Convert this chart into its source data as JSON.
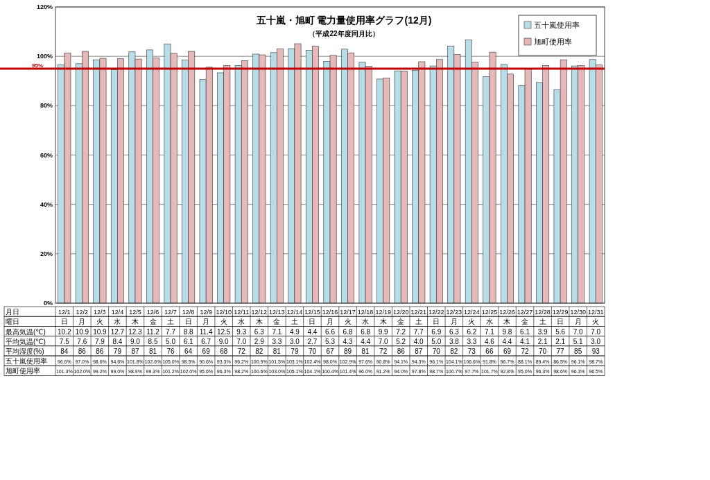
{
  "chart_data": {
    "type": "bar",
    "title": "五十嵐・旭町  電力量使用率グラフ(12月)",
    "subtitle": "（平成22年度同月比）",
    "xlabel": "月日",
    "categories": [
      "12/1",
      "12/2",
      "12/3",
      "12/4",
      "12/5",
      "12/6",
      "12/7",
      "12/8",
      "12/9",
      "12/10",
      "12/11",
      "12/12",
      "12/13",
      "12/14",
      "12/15",
      "12/16",
      "12/17",
      "12/18",
      "12/19",
      "12/20",
      "12/21",
      "12/22",
      "12/23",
      "12/24",
      "12/25",
      "12/26",
      "12/27",
      "12/28",
      "12/29",
      "12/30",
      "12/31"
    ],
    "series": [
      {
        "name": "五十嵐使用率",
        "color": "#b7dde8",
        "values": [
          96.6,
          97.0,
          98.6,
          94.6,
          101.8,
          102.6,
          105.0,
          98.5,
          90.6,
          93.3,
          96.2,
          100.9,
          101.5,
          103.1,
          102.4,
          98.0,
          102.9,
          97.6,
          90.8,
          94.1,
          94.3,
          96.1,
          104.1,
          106.6,
          91.8,
          96.7,
          88.1,
          89.4,
          86.5,
          96.1,
          98.7
        ],
        "value_labels": [
          "96.6%",
          "97.0%",
          "98.6%",
          "94.6%",
          "101.8%",
          "102.6%",
          "105.0%",
          "98.5%",
          "90.6%",
          "93.3%",
          "96.2%",
          "100.9%",
          "101.5%",
          "103.1%",
          "102.4%",
          "98.0%",
          "102.9%",
          "97.6%",
          "90.8%",
          "94.1%",
          "94.3%",
          "96.1%",
          "104.1%",
          "106.6%",
          "91.8%",
          "96.7%",
          "88.1%",
          "89.4%",
          "86.5%",
          "96.1%",
          "98.7%"
        ]
      },
      {
        "name": "旭町使用率",
        "color": "#e6b9b8",
        "values": [
          101.3,
          102.0,
          99.2,
          99.0,
          98.9,
          99.3,
          101.2,
          102.0,
          95.6,
          96.3,
          98.2,
          100.6,
          103.0,
          105.1,
          104.1,
          100.4,
          101.4,
          96.0,
          91.2,
          94.0,
          97.8,
          98.7,
          100.7,
          97.7,
          101.7,
          92.8,
          95.0,
          96.3,
          98.6,
          96.3,
          96.5
        ],
        "value_labels": [
          "101.3%",
          "102.0%",
          "99.2%",
          "99.0%",
          "98.9%",
          "99.3%",
          "101.2%",
          "102.0%",
          "95.6%",
          "96.3%",
          "98.2%",
          "100.6%",
          "103.0%",
          "105.1%",
          "104.1%",
          "100.4%",
          "101.4%",
          "96.0%",
          "91.2%",
          "94.0%",
          "97.8%",
          "98.7%",
          "100.7%",
          "97.7%",
          "101.7%",
          "92.8%",
          "95.0%",
          "96.3%",
          "98.6%",
          "96.3%",
          "96.5%"
        ]
      },
      {
        "type": "other",
        "values": [
          null,
          null,
          null,
          null,
          null,
          null,
          null,
          null,
          null,
          null,
          null,
          null,
          null,
          null,
          null,
          null,
          null,
          null,
          null,
          null,
          null,
          null,
          null,
          null,
          null,
          null,
          null,
          null,
          null,
          null,
          null
        ],
        "value_labels": [
          "日",
          "月",
          "火",
          "水",
          "木",
          "金",
          "土",
          "日",
          "月",
          "火",
          "水",
          "木",
          "金",
          "土",
          "日",
          "月",
          "火",
          "水",
          "木",
          "金",
          "土",
          "日",
          "月",
          "火",
          "水",
          "木",
          "金",
          "土",
          "日",
          "月",
          "火"
        ]
      },
      {
        "type": "other",
        "values": [
          null,
          null,
          null,
          null,
          null,
          null,
          null,
          null,
          null,
          null,
          null,
          null,
          null,
          null,
          null,
          null,
          null,
          null,
          null,
          null,
          null,
          null,
          null,
          null,
          null,
          null,
          null,
          null,
          null,
          null,
          null
        ],
        "value_labels": [
          "10.2",
          "10.9",
          "10.9",
          "12.7",
          "12.3",
          "11.2",
          "7.7",
          "8.8",
          "11.4",
          "12.5",
          "9.3",
          "6.3",
          "7.1",
          "4.9",
          "4.4",
          "6.6",
          "6.8",
          "6.8",
          "9.9",
          "7.2",
          "7.7",
          "6.9",
          "6.3",
          "6.2",
          "7.1",
          "9.8",
          "6.1",
          "3.9",
          "5.6",
          "7.0",
          "7.0"
        ]
      },
      {
        "type": "other",
        "values": [
          null,
          null,
          null,
          null,
          null,
          null,
          null,
          null,
          null,
          null,
          null,
          null,
          null,
          null,
          null,
          null,
          null,
          null,
          null,
          null,
          null,
          null,
          null,
          null,
          null,
          null,
          null,
          null,
          null,
          null,
          null
        ],
        "value_labels": [
          "7.5",
          "7.6",
          "7.9",
          "8.4",
          "9.0",
          "8.5",
          "5.0",
          "6.1",
          "6.7",
          "9.0",
          "7.0",
          "2.9",
          "3.3",
          "3.0",
          "2.7",
          "5.3",
          "4.3",
          "4.4",
          "7.0",
          "5.2",
          "4.0",
          "5.0",
          "3.8",
          "3.3",
          "4.6",
          "4.4",
          "4.1",
          "2.1",
          "2.1",
          "5.1",
          "3.0"
        ]
      },
      {
        "type": "other",
        "values": [
          null,
          null,
          null,
          null,
          null,
          null,
          null,
          null,
          null,
          null,
          null,
          null,
          null,
          null,
          null,
          null,
          null,
          null,
          null,
          null,
          null,
          null,
          null,
          null,
          null,
          null,
          null,
          null,
          null,
          null,
          null
        ],
        "value_labels": [
          "84",
          "86",
          "86",
          "79",
          "87",
          "81",
          "76",
          "64",
          "69",
          "68",
          "72",
          "82",
          "81",
          "79",
          "70",
          "67",
          "89",
          "81",
          "72",
          "86",
          "87",
          "70",
          "82",
          "73",
          "66",
          "69",
          "72",
          "70",
          "77",
          "85",
          "93"
        ]
      }
    ],
    "annotations": [
      "曜日",
      "最高気温(℃)",
      "平均気温(℃)",
      "平均湿度(%)"
    ],
    "ylim": [
      0,
      120
    ],
    "yticks": [
      {
        "value": 0,
        "label": "0%"
      },
      {
        "value": 20,
        "label": "20%"
      },
      {
        "value": 40,
        "label": "40%"
      },
      {
        "value": 60,
        "label": "60%"
      },
      {
        "value": 80,
        "label": "80%"
      },
      {
        "value": 100,
        "label": "100%"
      },
      {
        "value": 120,
        "label": "120%"
      }
    ],
    "ref_lines": [
      {
        "axis": "y",
        "value": 95,
        "label": "95%",
        "color": "#c00000"
      }
    ],
    "grid": "y",
    "legend": "top right"
  }
}
